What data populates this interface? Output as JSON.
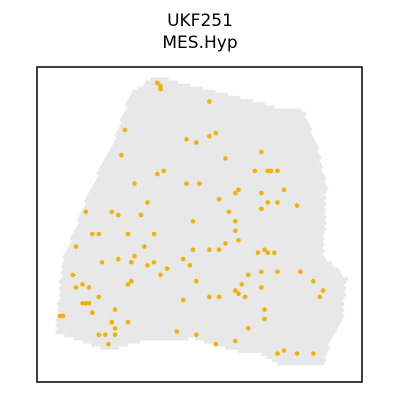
{
  "chart_data": {
    "type": "scatter",
    "title": "UKF251",
    "subtitle": "MES.Hyp",
    "xlabel": "",
    "ylabel": "",
    "grid": false,
    "xlim": [
      0,
      100
    ],
    "ylim": [
      0,
      100
    ],
    "colors": {
      "background_spots": "#e8e8e8",
      "highlight": "#f2b100",
      "frame": "#000000"
    },
    "series": [
      {
        "points": [
          [
            37,
            95
          ],
          [
            38,
            94
          ],
          [
            38,
            93
          ],
          [
            53,
            89
          ],
          [
            27,
            80
          ],
          [
            55,
            79
          ],
          [
            53,
            78
          ],
          [
            46,
            77
          ],
          [
            49,
            76
          ],
          [
            69,
            73
          ],
          [
            26,
            72
          ],
          [
            58,
            71
          ],
          [
            72,
            67
          ],
          [
            74,
            67
          ],
          [
            71,
            67
          ],
          [
            67,
            67
          ],
          [
            39,
            67
          ],
          [
            37,
            66
          ],
          [
            30,
            63
          ],
          [
            50,
            63
          ],
          [
            46,
            63
          ],
          [
            62,
            61
          ],
          [
            61,
            60
          ],
          [
            34,
            57
          ],
          [
            69,
            60
          ],
          [
            76,
            61
          ],
          [
            56,
            58
          ],
          [
            15,
            54
          ],
          [
            25,
            53
          ],
          [
            23,
            54
          ],
          [
            71,
            57
          ],
          [
            69,
            55
          ],
          [
            74,
            57
          ],
          [
            80,
            56
          ],
          [
            59,
            54
          ],
          [
            32,
            53
          ],
          [
            48,
            51
          ],
          [
            61,
            51
          ],
          [
            19,
            47
          ],
          [
            17,
            47
          ],
          [
            28,
            47
          ],
          [
            36,
            47
          ],
          [
            61,
            48
          ],
          [
            62,
            45
          ],
          [
            58,
            44
          ],
          [
            56,
            42
          ],
          [
            53,
            42
          ],
          [
            12,
            43
          ],
          [
            48,
            42
          ],
          [
            33,
            43
          ],
          [
            30,
            40
          ],
          [
            45,
            39
          ],
          [
            36,
            38
          ],
          [
            34,
            37
          ],
          [
            47,
            37
          ],
          [
            25,
            39
          ],
          [
            68,
            41
          ],
          [
            70,
            42
          ],
          [
            71,
            41
          ],
          [
            73,
            41
          ],
          [
            20,
            38
          ],
          [
            29,
            38
          ],
          [
            11,
            34
          ],
          [
            38,
            34
          ],
          [
            40,
            36
          ],
          [
            69,
            35
          ],
          [
            74,
            35
          ],
          [
            65,
            34
          ],
          [
            14,
            31
          ],
          [
            29,
            32
          ],
          [
            28,
            31
          ],
          [
            12,
            30
          ],
          [
            63,
            31
          ],
          [
            16,
            30
          ],
          [
            49,
            32
          ],
          [
            56,
            27
          ],
          [
            61,
            29
          ],
          [
            69,
            30
          ],
          [
            14,
            25
          ],
          [
            15,
            25
          ],
          [
            16,
            25
          ],
          [
            19,
            27
          ],
          [
            45,
            26
          ],
          [
            53,
            27
          ],
          [
            64,
            27
          ],
          [
            62,
            28
          ],
          [
            87,
            27
          ],
          [
            81,
            35
          ],
          [
            85,
            32
          ],
          [
            88,
            29
          ],
          [
            8,
            21
          ],
          [
            7,
            21
          ],
          [
            17,
            22
          ],
          [
            24,
            23
          ],
          [
            28,
            19
          ],
          [
            43,
            16
          ],
          [
            23,
            19
          ],
          [
            24,
            17
          ],
          [
            65,
            17
          ],
          [
            70,
            20
          ],
          [
            19,
            15
          ],
          [
            21,
            15
          ],
          [
            24,
            15
          ],
          [
            22,
            12
          ],
          [
            74,
            9
          ],
          [
            80,
            9
          ],
          [
            76,
            10
          ],
          [
            85,
            9
          ],
          [
            55,
            12
          ],
          [
            61,
            13
          ],
          [
            70,
            23
          ],
          [
            49,
            15
          ]
        ]
      }
    ]
  }
}
